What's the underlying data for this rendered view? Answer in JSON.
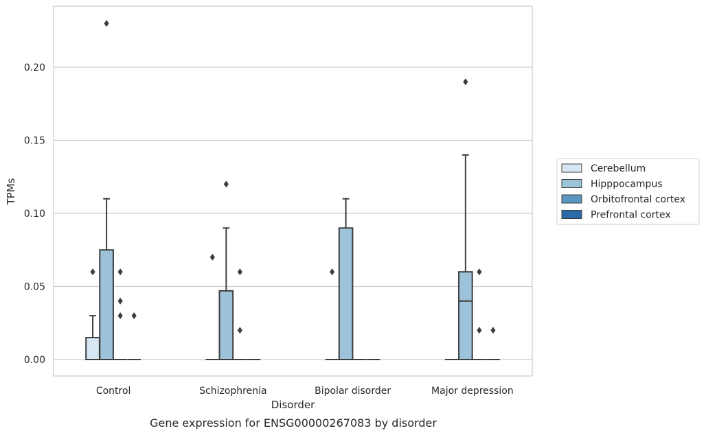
{
  "chart_data": {
    "type": "box",
    "caption": "Gene expression for ENSG00000267083 by disorder",
    "xlabel": "Disorder",
    "ylabel": "TPMs",
    "ylim": [
      -0.011,
      0.242
    ],
    "yticks": [
      0.0,
      0.05,
      0.1,
      0.15,
      0.2
    ],
    "ytick_labels": [
      "0.00",
      "0.05",
      "0.10",
      "0.15",
      "0.20"
    ],
    "grid": "horizontal",
    "legend_position": "right",
    "categories": [
      "Control",
      "Schizophrenia",
      "Bipolar disorder",
      "Major depression"
    ],
    "series": [
      {
        "name": "Cerebellum",
        "color": "#d7e6f3",
        "boxes": [
          {
            "q1": 0.0,
            "median": 0.0,
            "q3": 0.015,
            "whislo": 0.0,
            "whishi": 0.03,
            "fliers": []
          },
          {
            "q1": 0.0,
            "median": 0.0,
            "q3": 0.0,
            "whislo": 0.0,
            "whishi": 0.0,
            "fliers": []
          },
          {
            "q1": 0.0,
            "median": 0.0,
            "q3": 0.0,
            "whislo": 0.0,
            "whishi": 0.0,
            "fliers": []
          },
          {
            "q1": 0.0,
            "median": 0.0,
            "q3": 0.0,
            "whislo": 0.0,
            "whishi": 0.0,
            "fliers": []
          }
        ]
      },
      {
        "name": "Hipppocampus",
        "color": "#9dc3da",
        "boxes": [
          {
            "q1": 0.0,
            "median": 0.0,
            "q3": 0.075,
            "whislo": 0.0,
            "whishi": 0.11,
            "fliers": [
              0.23
            ]
          },
          {
            "q1": 0.0,
            "median": 0.0,
            "q3": 0.047,
            "whislo": 0.0,
            "whishi": 0.09,
            "fliers": [
              0.12
            ]
          },
          {
            "q1": 0.0,
            "median": 0.0,
            "q3": 0.09,
            "whislo": 0.0,
            "whishi": 0.11,
            "fliers": []
          },
          {
            "q1": 0.0,
            "median": 0.04,
            "q3": 0.06,
            "whislo": 0.0,
            "whishi": 0.14,
            "fliers": [
              0.19
            ]
          }
        ]
      },
      {
        "name": "Orbitofrontal cortex",
        "color": "#5a97c1",
        "boxes": [
          {
            "q1": 0.0,
            "median": 0.0,
            "q3": 0.0,
            "whislo": 0.0,
            "whishi": 0.0,
            "fliers": [
              0.06,
              0.04,
              0.03
            ]
          },
          {
            "q1": 0.0,
            "median": 0.0,
            "q3": 0.0,
            "whislo": 0.0,
            "whishi": 0.0,
            "fliers": [
              0.06,
              0.02
            ]
          },
          {
            "q1": 0.0,
            "median": 0.0,
            "q3": 0.0,
            "whislo": 0.0,
            "whishi": 0.0,
            "fliers": []
          },
          {
            "q1": 0.0,
            "median": 0.0,
            "q3": 0.0,
            "whislo": 0.0,
            "whishi": 0.0,
            "fliers": [
              0.06,
              0.02
            ]
          }
        ]
      },
      {
        "name": "Prefrontal cortex",
        "color": "#2b6aa6",
        "boxes": [
          {
            "q1": 0.0,
            "median": 0.0,
            "q3": 0.0,
            "whislo": 0.0,
            "whishi": 0.0,
            "fliers": [
              0.03
            ]
          },
          {
            "q1": 0.0,
            "median": 0.0,
            "q3": 0.0,
            "whislo": 0.0,
            "whishi": 0.0,
            "fliers": []
          },
          {
            "q1": 0.0,
            "median": 0.0,
            "q3": 0.0,
            "whislo": 0.0,
            "whishi": 0.0,
            "fliers": []
          },
          {
            "q1": 0.0,
            "median": 0.0,
            "q3": 0.0,
            "whislo": 0.0,
            "whishi": 0.0,
            "fliers": [
              0.02
            ]
          }
        ]
      }
    ],
    "left_fliers": [
      {
        "category": "Control",
        "value": 0.06
      },
      {
        "category": "Schizophrenia",
        "value": 0.07
      },
      {
        "category": "Bipolar disorder",
        "value": 0.06
      }
    ]
  }
}
